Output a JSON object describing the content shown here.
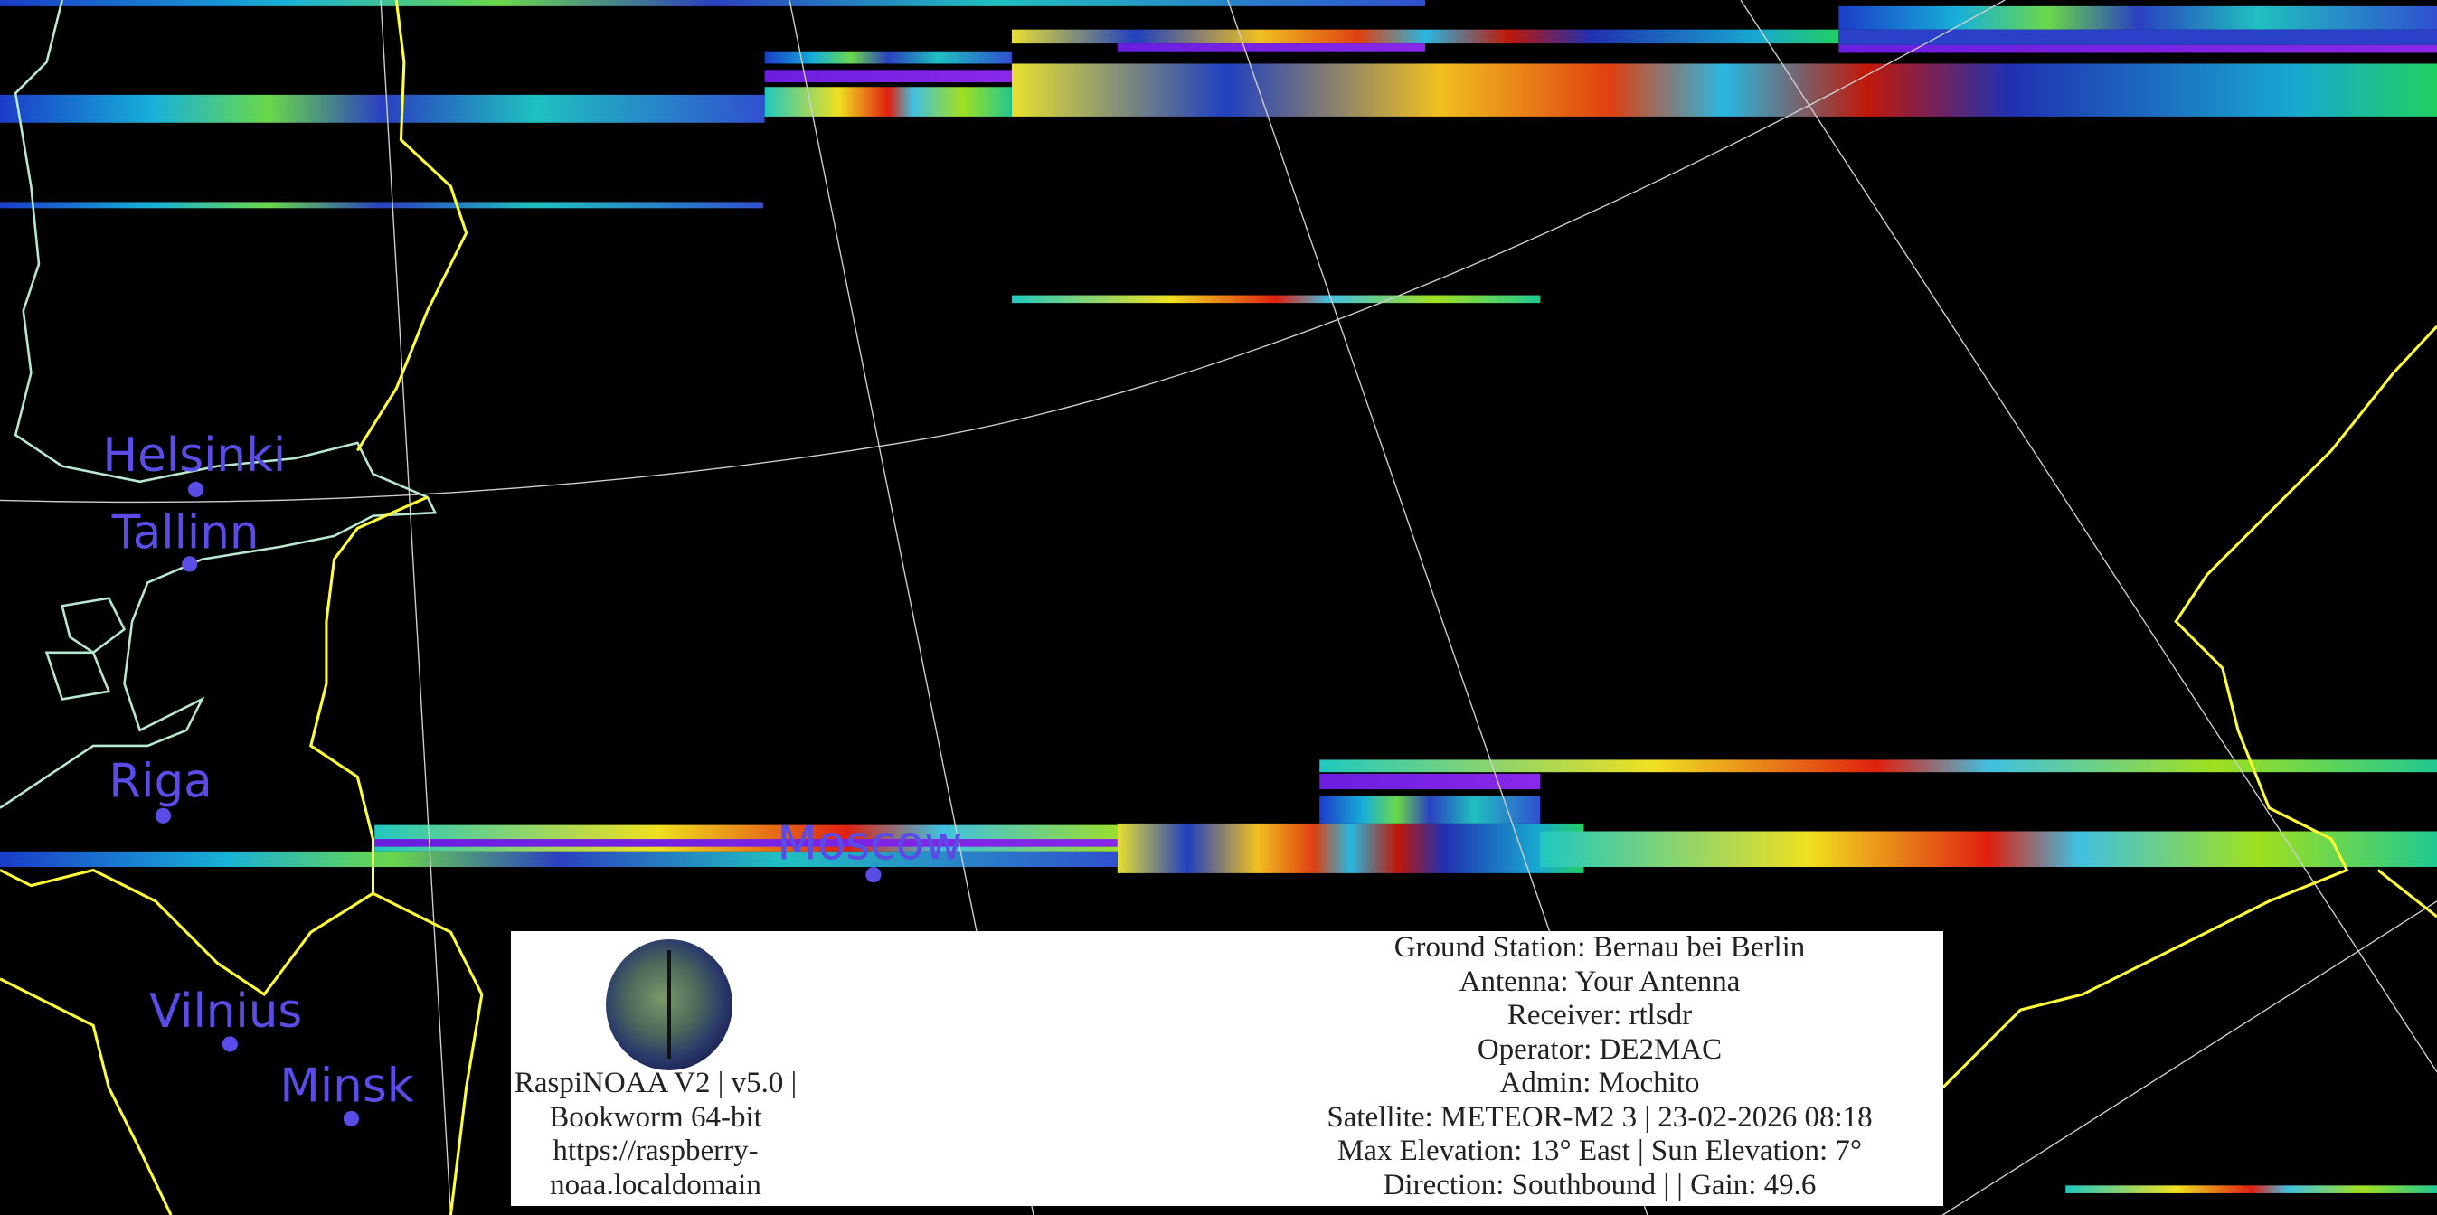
{
  "cities": [
    {
      "name": "Helsinki"
    },
    {
      "name": "Tallinn"
    },
    {
      "name": "Riga"
    },
    {
      "name": "Moscow"
    },
    {
      "name": "Vilnius"
    },
    {
      "name": "Minsk"
    }
  ],
  "colors": {
    "city": "#5a4ce6",
    "coastline": "#b8e8d0",
    "border": "#ffff33",
    "grid": "#d0d0d0"
  },
  "info_panel": {
    "logo": "raspinoaa-logo",
    "software": [
      "RaspiNOAA V2 | v5.0 |",
      "Bookworm 64-bit",
      "https://raspberry-",
      "noaa.localdomain"
    ],
    "details": [
      "Ground Station: Bernau bei Berlin",
      "Antenna: Your Antenna",
      "Receiver: rtlsdr",
      "Operator: DE2MAC",
      "Admin: Mochito",
      "Satellite: METEOR-M2 3 | 23-02-2026 08:18",
      "Max Elevation: 13° East | Sun Elevation: 7°",
      "Direction: Southbound | | Gain: 49.6"
    ]
  }
}
